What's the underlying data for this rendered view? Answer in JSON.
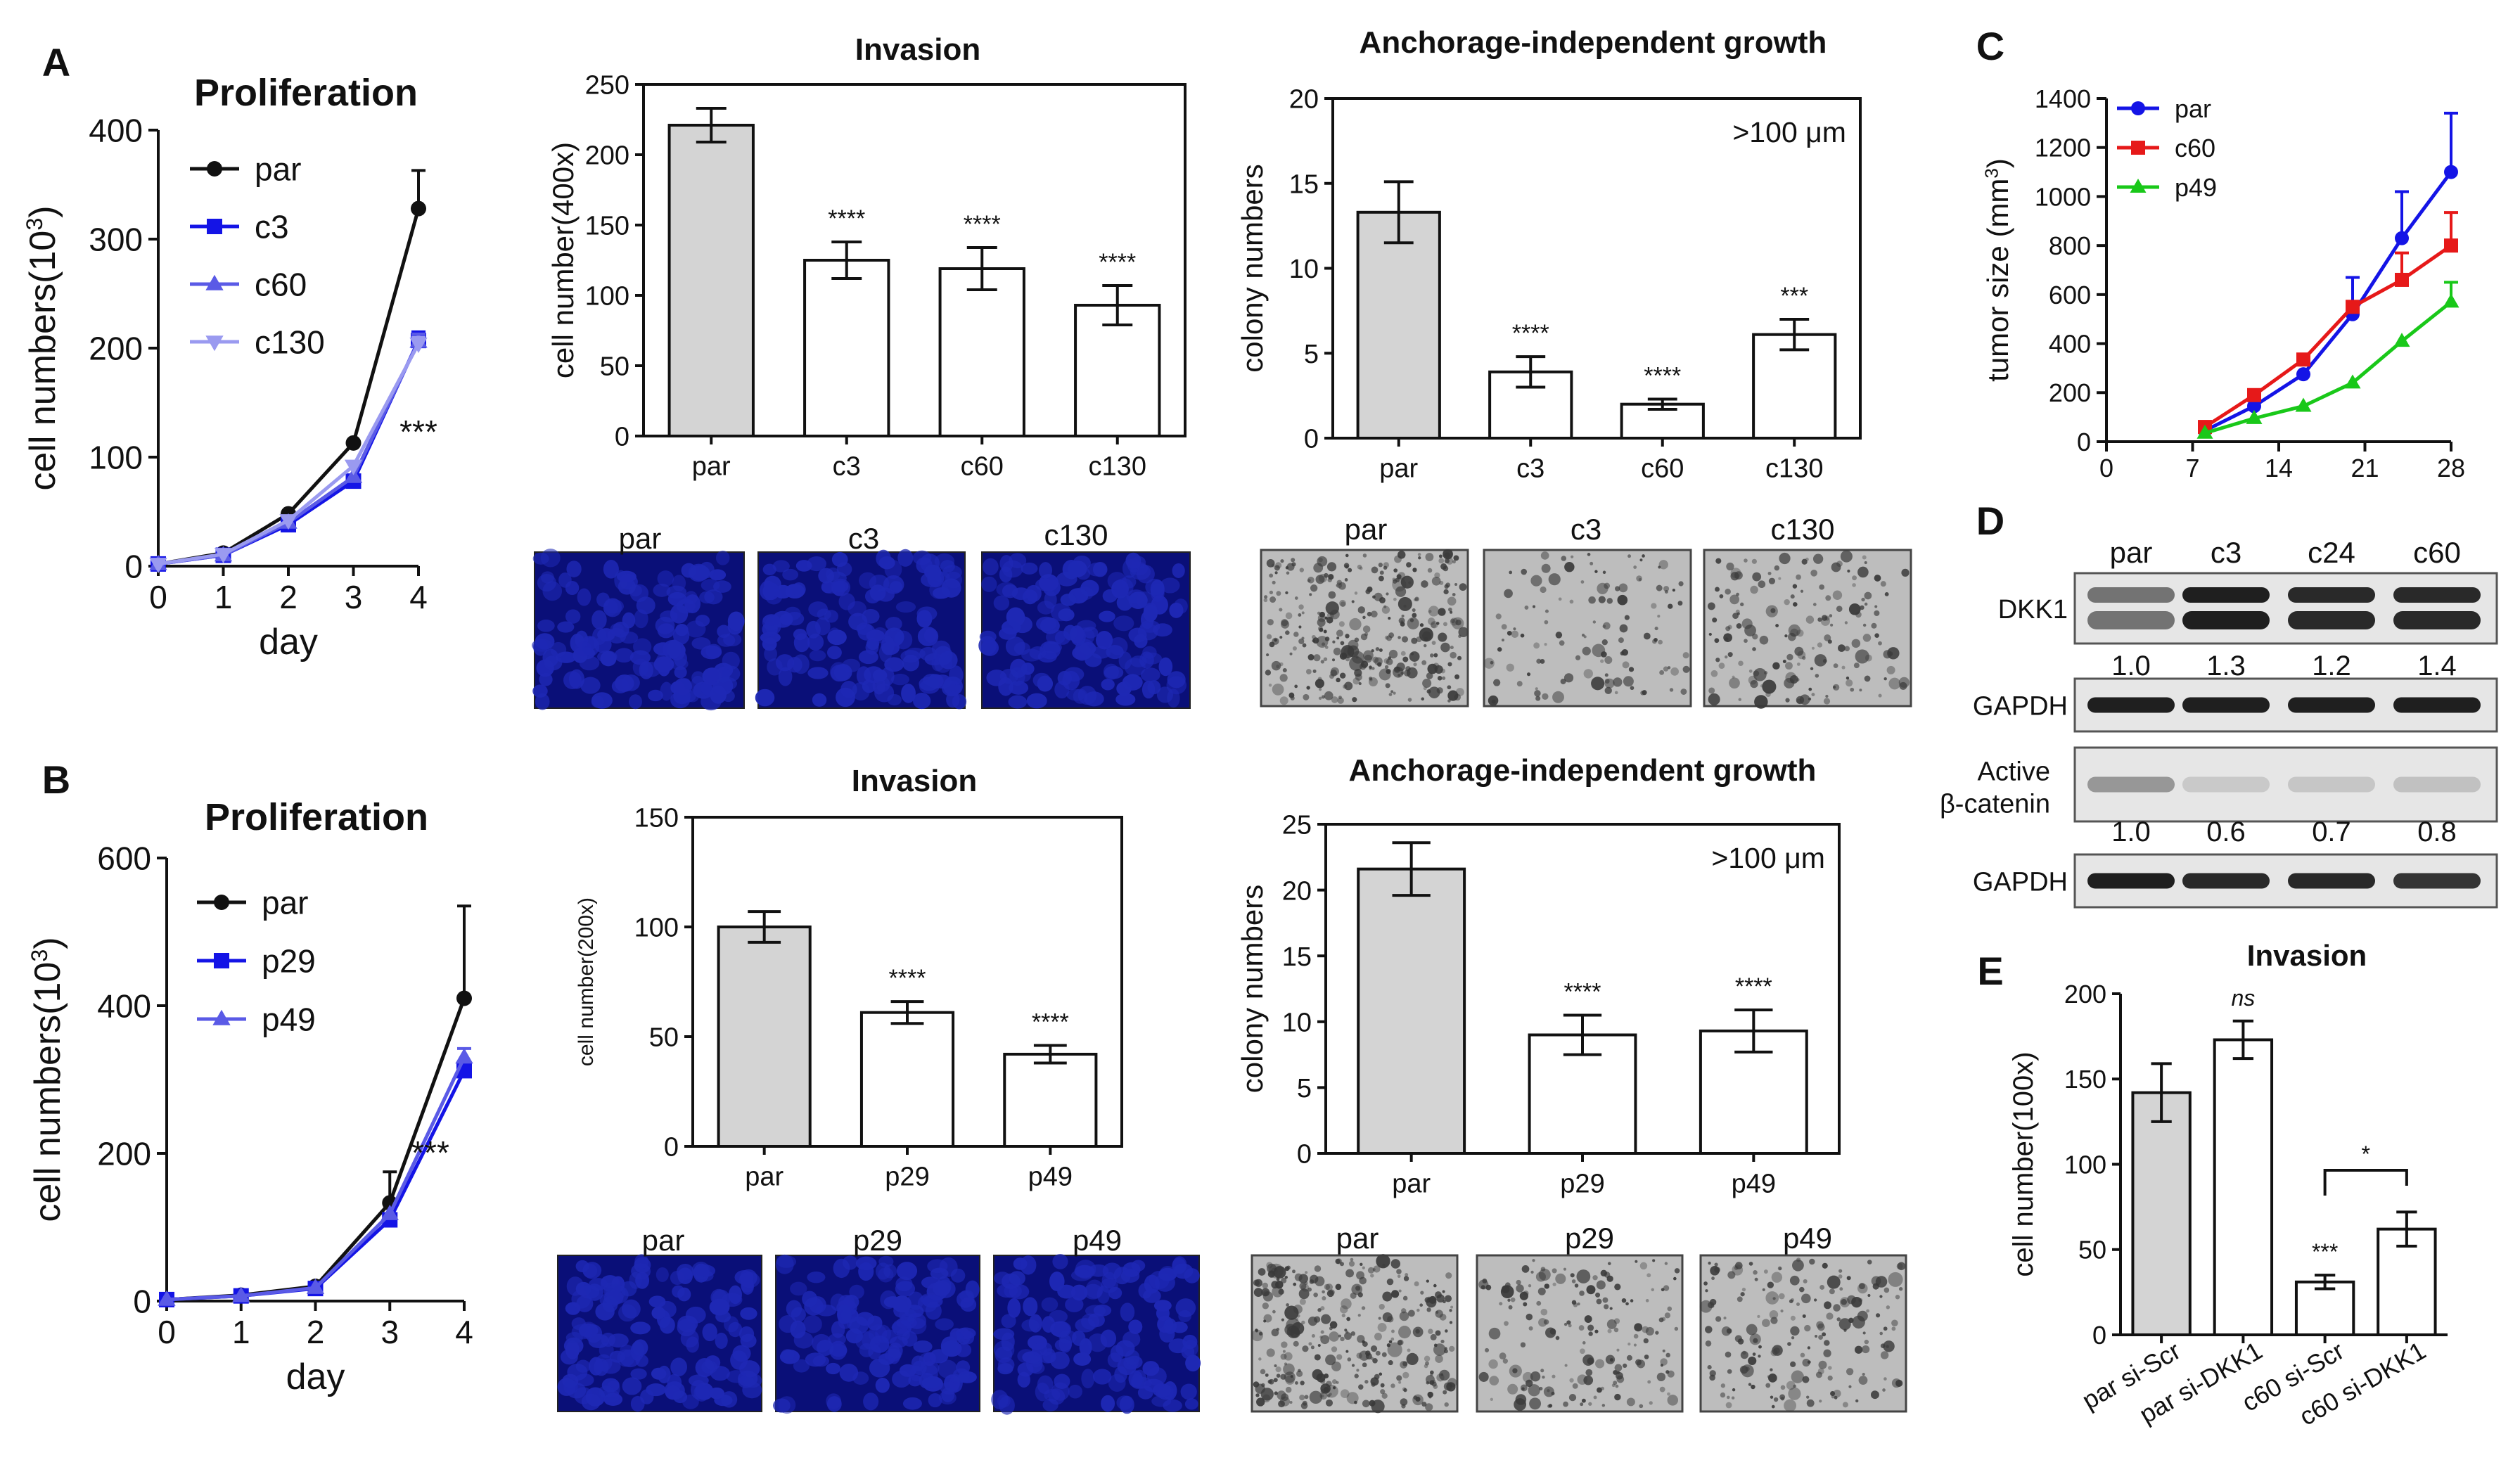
{
  "panel_letters": [
    "A",
    "B",
    "C",
    "D",
    "E"
  ],
  "colors": {
    "black": "#111111",
    "blue": "#1414e6",
    "mid_blue": "#5a5ae6",
    "light_blue": "#9a9af0",
    "red": "#e61919",
    "green": "#19c819",
    "bar_gray": "#d4d4d4",
    "fluor_blue": "#1e28b4",
    "colony_gray": "#bdbdbd"
  },
  "chart_data": [
    {
      "id": "A-proliferation",
      "type": "line",
      "title": "Proliferation",
      "xlabel": "day",
      "ylabel": "cell numbers(10",
      "ylabel_sup": "3",
      "ylabel_end": ")",
      "x": [
        0,
        1,
        2,
        3,
        4
      ],
      "xlim": [
        0,
        4
      ],
      "ylim": [
        0,
        400
      ],
      "xticks": [
        "0",
        "1",
        "2",
        "3",
        "4"
      ],
      "yticks": [
        "0",
        "100",
        "200",
        "300",
        "400"
      ],
      "annotation": "***",
      "series": [
        {
          "name": "par",
          "values": [
            2,
            12,
            48,
            113,
            328
          ],
          "err": [
            0,
            0,
            0,
            0,
            35
          ],
          "marker": "circle",
          "color": "#111111"
        },
        {
          "name": "c3",
          "values": [
            2,
            10,
            38,
            78,
            207
          ],
          "err": [
            0,
            0,
            0,
            0,
            8
          ],
          "marker": "square",
          "color": "#1414e6"
        },
        {
          "name": "c60",
          "values": [
            2,
            10,
            40,
            82,
            206
          ],
          "err": [
            0,
            0,
            0,
            0,
            7
          ],
          "marker": "triangle",
          "color": "#5a5ae6"
        },
        {
          "name": "c130",
          "values": [
            2,
            11,
            42,
            92,
            204
          ],
          "err": [
            0,
            0,
            0,
            0,
            6
          ],
          "marker": "triangle-down",
          "color": "#9a9af0"
        }
      ]
    },
    {
      "id": "A-invasion",
      "type": "bar",
      "title": "Invasion",
      "ylabel": "cell number(400x)",
      "ylim": [
        0,
        250
      ],
      "yticks": [
        "0",
        "50",
        "100",
        "150",
        "200",
        "250"
      ],
      "categories": [
        "par",
        "c3",
        "c60",
        "c130"
      ],
      "values": [
        221,
        125,
        119,
        93
      ],
      "err": [
        12,
        13,
        15,
        14
      ],
      "significance": [
        "",
        "****",
        "****",
        "****"
      ],
      "fills": [
        "gray",
        "white",
        "white",
        "white"
      ]
    },
    {
      "id": "A-anchorage",
      "type": "bar",
      "title": "Anchorage-independent growth",
      "ylabel": "colony numbers",
      "ylim": [
        0,
        20
      ],
      "yticks": [
        "0",
        "5",
        "10",
        "15",
        "20"
      ],
      "inset_label": ">100 μm",
      "categories": [
        "par",
        "c3",
        "c60",
        "c130"
      ],
      "values": [
        13.3,
        3.9,
        2.0,
        6.1
      ],
      "err": [
        1.8,
        0.9,
        0.3,
        0.9
      ],
      "significance": [
        "",
        "****",
        "****",
        "***"
      ],
      "fills": [
        "gray",
        "white",
        "white",
        "white"
      ]
    },
    {
      "id": "B-proliferation",
      "type": "line",
      "title": "Proliferation",
      "xlabel": "day",
      "ylabel": "cell numbers(10",
      "ylabel_sup": "3",
      "ylabel_end": ")",
      "x": [
        0,
        1,
        2,
        3,
        4
      ],
      "xlim": [
        0,
        4
      ],
      "ylim": [
        0,
        600
      ],
      "xticks": [
        "0",
        "1",
        "2",
        "3",
        "4"
      ],
      "yticks": [
        "0",
        "200",
        "400",
        "600"
      ],
      "annotation": "***",
      "series": [
        {
          "name": "par",
          "values": [
            2,
            8,
            20,
            133,
            410
          ],
          "err": [
            0,
            0,
            0,
            42,
            125
          ],
          "marker": "circle",
          "color": "#111111"
        },
        {
          "name": "p29",
          "values": [
            2,
            7,
            17,
            110,
            312
          ],
          "err": [
            0,
            0,
            0,
            0,
            10
          ],
          "marker": "square",
          "color": "#1414e6"
        },
        {
          "name": "p49",
          "values": [
            2,
            7,
            18,
            118,
            330
          ],
          "err": [
            0,
            0,
            0,
            0,
            12
          ],
          "marker": "triangle",
          "color": "#5a5ae6"
        }
      ]
    },
    {
      "id": "B-invasion",
      "type": "bar",
      "title": "Invasion",
      "ylabel": "cell number(200x)",
      "ylim": [
        0,
        150
      ],
      "yticks": [
        "0",
        "50",
        "100",
        "150"
      ],
      "categories": [
        "par",
        "p29",
        "p49"
      ],
      "values": [
        100,
        61,
        42
      ],
      "err": [
        7,
        5,
        4
      ],
      "significance": [
        "",
        "****",
        "****"
      ],
      "fills": [
        "gray",
        "white",
        "white"
      ]
    },
    {
      "id": "B-anchorage",
      "type": "bar",
      "title": "Anchorage-independent growth",
      "ylabel": "colony numbers",
      "ylim": [
        0,
        25
      ],
      "yticks": [
        "0",
        "5",
        "10",
        "15",
        "20",
        "25"
      ],
      "inset_label": ">100 μm",
      "categories": [
        "par",
        "p29",
        "p49"
      ],
      "values": [
        21.6,
        9.0,
        9.3
      ],
      "err": [
        2.0,
        1.5,
        1.6
      ],
      "significance": [
        "",
        "****",
        "****"
      ],
      "fills": [
        "gray",
        "white",
        "white"
      ]
    },
    {
      "id": "C-tumor",
      "type": "line",
      "title": "",
      "xlabel": "",
      "ylabel": "tumor size (mm",
      "ylabel_sup": "3",
      "ylabel_end": ")",
      "x_by_series": true,
      "xlim": [
        0,
        28
      ],
      "ylim": [
        0,
        1400
      ],
      "xticks": [
        "0",
        "7",
        "14",
        "21",
        "28"
      ],
      "yticks": [
        "0",
        "200",
        "400",
        "600",
        "800",
        "1000",
        "1200",
        "1400"
      ],
      "annotation": "",
      "series": [
        {
          "name": "par",
          "x": [
            8,
            12,
            16,
            20,
            24,
            28
          ],
          "values": [
            45,
            145,
            275,
            520,
            830,
            1100
          ],
          "err": [
            0,
            0,
            0,
            150,
            190,
            240
          ],
          "marker": "circle",
          "color": "#1414e6"
        },
        {
          "name": "c60",
          "x": [
            8,
            12,
            16,
            20,
            24,
            28
          ],
          "values": [
            60,
            190,
            335,
            550,
            660,
            800
          ],
          "err": [
            0,
            0,
            0,
            0,
            110,
            135
          ],
          "marker": "square",
          "color": "#e61919"
        },
        {
          "name": "p49",
          "x": [
            8,
            12,
            16,
            20,
            24,
            28
          ],
          "values": [
            35,
            95,
            145,
            240,
            410,
            570
          ],
          "err": [
            0,
            0,
            0,
            0,
            0,
            80
          ],
          "marker": "triangle",
          "color": "#19c819"
        }
      ]
    },
    {
      "id": "E-invasion",
      "type": "bar",
      "title": "Invasion",
      "ylabel": "cell number(100x)",
      "ylim": [
        0,
        200
      ],
      "yticks": [
        "0",
        "50",
        "100",
        "150",
        "200"
      ],
      "categories": [
        "par si-Scr",
        "par si-DKK1",
        "c60 si-Scr",
        "c60 si-DKK1"
      ],
      "values": [
        142,
        173,
        31,
        62
      ],
      "err": [
        17,
        11,
        4,
        10
      ],
      "significance": [
        "",
        "ns",
        "***",
        ""
      ],
      "fills": [
        "gray",
        "white",
        "white",
        "white"
      ],
      "bracket": {
        "from": 2,
        "to": 3,
        "label": "*"
      }
    }
  ],
  "image_panels": {
    "A_invasion": [
      "par",
      "c3",
      "c130"
    ],
    "A_colony": [
      "par",
      "c3",
      "c130"
    ],
    "B_invasion": [
      "par",
      "p29",
      "p49"
    ],
    "B_colony": [
      "par",
      "p29",
      "p49"
    ]
  },
  "western_blot": {
    "lanes": [
      "par",
      "c3",
      "c24",
      "c60"
    ],
    "rows": [
      {
        "label": "DKK1",
        "quant": [
          "1.0",
          "1.3",
          "1.2",
          "1.4"
        ]
      },
      {
        "label": "GAPDH",
        "quant": []
      },
      {
        "label": "Active",
        "label2": "β-catenin",
        "quant": [
          "1.0",
          "0.6",
          "0.7",
          "0.8"
        ]
      },
      {
        "label": "GAPDH",
        "quant": []
      }
    ]
  }
}
